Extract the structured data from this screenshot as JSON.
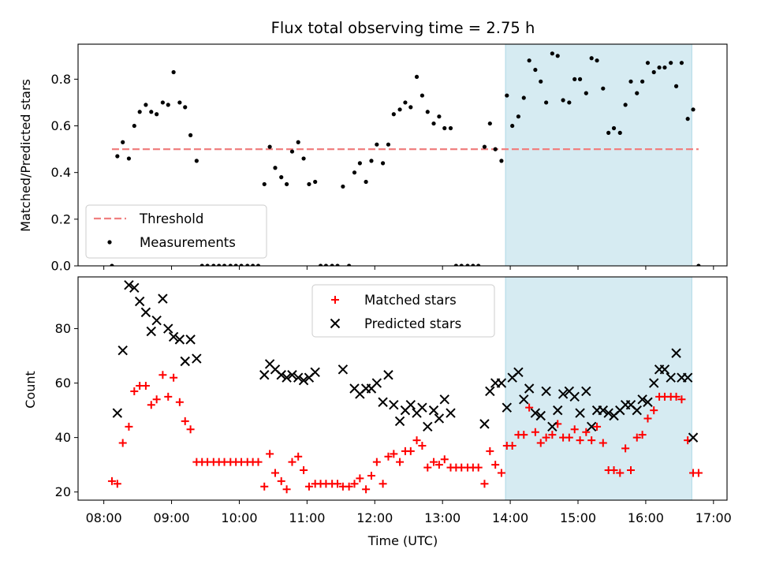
{
  "chart_data": {
    "type": "scatter",
    "title": "Flux total observing time = 2.75 h",
    "xlabel": "Time (UTC)",
    "x_ticks": [
      "08:00",
      "09:00",
      "10:00",
      "11:00",
      "12:00",
      "13:00",
      "14:00",
      "15:00",
      "16:00",
      "17:00"
    ],
    "xlim_hours": [
      7.62,
      17.2
    ],
    "shaded_span_hours": [
      13.93,
      16.68
    ],
    "shade_color": "#add8e6",
    "panels": [
      {
        "ylabel": "Matched/Predicted stars",
        "ylim": [
          0,
          0.95
        ],
        "yticks": [
          "0.0",
          "0.2",
          "0.4",
          "0.6",
          "0.8"
        ],
        "legend_position": "lower-left",
        "threshold": {
          "name": "Threshold",
          "value": 0.5,
          "x_range_hours": [
            8.12,
            16.78
          ],
          "color": "#f08080"
        },
        "series": [
          {
            "name": "Measurements",
            "marker": "dot",
            "color": "#000000",
            "x_hours": [
              8.12,
              8.2,
              8.28,
              8.37,
              8.45,
              8.53,
              8.62,
              8.7,
              8.78,
              8.87,
              8.95,
              9.03,
              9.12,
              9.2,
              9.28,
              9.37,
              9.45,
              9.53,
              9.62,
              9.7,
              9.78,
              9.87,
              9.95,
              10.03,
              10.12,
              10.2,
              10.28,
              10.37,
              10.45,
              10.53,
              10.62,
              10.7,
              10.78,
              10.87,
              10.95,
              11.03,
              11.12,
              11.2,
              11.28,
              11.37,
              11.45,
              11.53,
              11.62,
              11.7,
              11.78,
              11.87,
              11.95,
              12.03,
              12.12,
              12.2,
              12.28,
              12.37,
              12.45,
              12.53,
              12.62,
              12.7,
              12.78,
              12.87,
              12.95,
              13.03,
              13.12,
              13.2,
              13.28,
              13.37,
              13.45,
              13.53,
              13.62,
              13.7,
              13.78,
              13.87,
              13.95,
              14.03,
              14.12,
              14.2,
              14.28,
              14.37,
              14.45,
              14.53,
              14.62,
              14.7,
              14.78,
              14.87,
              14.95,
              15.03,
              15.12,
              15.2,
              15.28,
              15.37,
              15.45,
              15.53,
              15.62,
              15.7,
              15.78,
              15.87,
              15.95,
              16.03,
              16.12,
              16.2,
              16.28,
              16.37,
              16.45,
              16.53,
              16.62,
              16.7,
              16.78
            ],
            "y": [
              0.0,
              0.47,
              0.53,
              0.46,
              0.6,
              0.66,
              0.69,
              0.66,
              0.65,
              0.7,
              0.69,
              0.83,
              0.7,
              0.68,
              0.56,
              0.45,
              0.0,
              0.0,
              0.0,
              0.0,
              0.0,
              0.0,
              0.0,
              0.0,
              0.0,
              0.0,
              0.0,
              0.35,
              0.51,
              0.42,
              0.38,
              0.35,
              0.49,
              0.53,
              0.46,
              0.35,
              0.36,
              0.0,
              0.0,
              0.0,
              0.0,
              0.34,
              0.0,
              0.4,
              0.44,
              0.36,
              0.45,
              0.52,
              0.44,
              0.52,
              0.65,
              0.67,
              0.7,
              0.68,
              0.81,
              0.73,
              0.66,
              0.61,
              0.64,
              0.59,
              0.59,
              0.0,
              0.0,
              0.0,
              0.0,
              0.0,
              0.51,
              0.61,
              0.5,
              0.45,
              0.73,
              0.6,
              0.64,
              0.72,
              0.88,
              0.84,
              0.79,
              0.7,
              0.91,
              0.9,
              0.71,
              0.7,
              0.8,
              0.8,
              0.74,
              0.89,
              0.88,
              0.76,
              0.57,
              0.59,
              0.57,
              0.69,
              0.79,
              0.74,
              0.79,
              0.87,
              0.83,
              0.85,
              0.85,
              0.87,
              0.77,
              0.87,
              0.63,
              0.67,
              0.0
            ]
          }
        ]
      },
      {
        "ylabel": "Count",
        "ylim": [
          17,
          99
        ],
        "yticks": [
          "20",
          "40",
          "60",
          "80"
        ],
        "legend_position": "top-center",
        "series": [
          {
            "name": "Matched stars",
            "marker": "plus",
            "color": "#ff0000",
            "x_hours": [
              8.12,
              8.2,
              8.28,
              8.37,
              8.45,
              8.53,
              8.62,
              8.7,
              8.78,
              8.87,
              8.95,
              9.03,
              9.12,
              9.2,
              9.28,
              9.37,
              9.45,
              9.53,
              9.62,
              9.7,
              9.78,
              9.87,
              9.95,
              10.03,
              10.12,
              10.2,
              10.28,
              10.37,
              10.45,
              10.53,
              10.62,
              10.7,
              10.78,
              10.87,
              10.95,
              11.03,
              11.12,
              11.2,
              11.28,
              11.37,
              11.45,
              11.53,
              11.62,
              11.7,
              11.78,
              11.87,
              11.95,
              12.03,
              12.12,
              12.2,
              12.28,
              12.37,
              12.45,
              12.53,
              12.62,
              12.7,
              12.78,
              12.87,
              12.95,
              13.03,
              13.12,
              13.2,
              13.28,
              13.37,
              13.45,
              13.53,
              13.62,
              13.7,
              13.78,
              13.87,
              13.95,
              14.03,
              14.12,
              14.2,
              14.28,
              14.37,
              14.45,
              14.53,
              14.62,
              14.7,
              14.78,
              14.87,
              14.95,
              15.03,
              15.12,
              15.2,
              15.28,
              15.37,
              15.45,
              15.53,
              15.62,
              15.7,
              15.78,
              15.87,
              15.95,
              16.03,
              16.12,
              16.2,
              16.28,
              16.37,
              16.45,
              16.53,
              16.62,
              16.7,
              16.78
            ],
            "y": [
              24,
              23,
              38,
              44,
              57,
              59,
              59,
              52,
              54,
              63,
              55,
              62,
              53,
              46,
              43,
              31,
              31,
              31,
              31,
              31,
              31,
              31,
              31,
              31,
              31,
              31,
              31,
              22,
              34,
              27,
              24,
              21,
              31,
              33,
              28,
              22,
              23,
              23,
              23,
              23,
              23,
              22,
              22,
              23,
              25,
              21,
              26,
              31,
              23,
              33,
              34,
              31,
              35,
              35,
              39,
              37,
              29,
              31,
              30,
              32,
              29,
              29,
              29,
              29,
              29,
              29,
              23,
              35,
              30,
              27,
              37,
              37,
              41,
              41,
              51,
              42,
              38,
              40,
              41,
              45,
              40,
              40,
              43,
              39,
              42,
              39,
              44,
              38,
              28,
              28,
              27,
              36,
              28,
              40,
              41,
              47,
              50,
              55,
              55,
              55,
              55,
              54,
              39,
              27,
              27
            ]
          },
          {
            "name": "Predicted stars",
            "marker": "x",
            "color": "#000000",
            "x_hours": [
              8.2,
              8.28,
              8.37,
              8.45,
              8.53,
              8.62,
              8.7,
              8.78,
              8.87,
              8.95,
              9.03,
              9.12,
              9.2,
              9.28,
              9.37,
              10.37,
              10.45,
              10.53,
              10.62,
              10.7,
              10.78,
              10.87,
              10.95,
              11.03,
              11.12,
              11.53,
              11.7,
              11.78,
              11.87,
              11.95,
              12.03,
              12.12,
              12.2,
              12.28,
              12.37,
              12.45,
              12.53,
              12.62,
              12.7,
              12.78,
              12.87,
              12.95,
              13.03,
              13.12,
              13.62,
              13.7,
              13.78,
              13.87,
              13.95,
              14.03,
              14.12,
              14.2,
              14.28,
              14.37,
              14.45,
              14.53,
              14.62,
              14.7,
              14.78,
              14.87,
              14.95,
              15.03,
              15.12,
              15.2,
              15.28,
              15.37,
              15.45,
              15.53,
              15.62,
              15.7,
              15.78,
              15.87,
              15.95,
              16.03,
              16.12,
              16.2,
              16.28,
              16.37,
              16.45,
              16.53,
              16.62,
              16.7
            ],
            "y": [
              49,
              72,
              96,
              95,
              90,
              86,
              79,
              83,
              91,
              80,
              77,
              76,
              68,
              76,
              69,
              63,
              67,
              65,
              63,
              62,
              63,
              62,
              61,
              62,
              64,
              65,
              58,
              56,
              58,
              58,
              60,
              53,
              63,
              52,
              46,
              50,
              52,
              49,
              51,
              44,
              50,
              47,
              54,
              49,
              45,
              57,
              60,
              60,
              51,
              62,
              64,
              54,
              58,
              49,
              48,
              57,
              44,
              50,
              56,
              57,
              55,
              49,
              57,
              44,
              50,
              50,
              49,
              48,
              50,
              52,
              52,
              50,
              54,
              53,
              60,
              65,
              65,
              62,
              71,
              62,
              62,
              40
            ]
          }
        ]
      }
    ]
  }
}
